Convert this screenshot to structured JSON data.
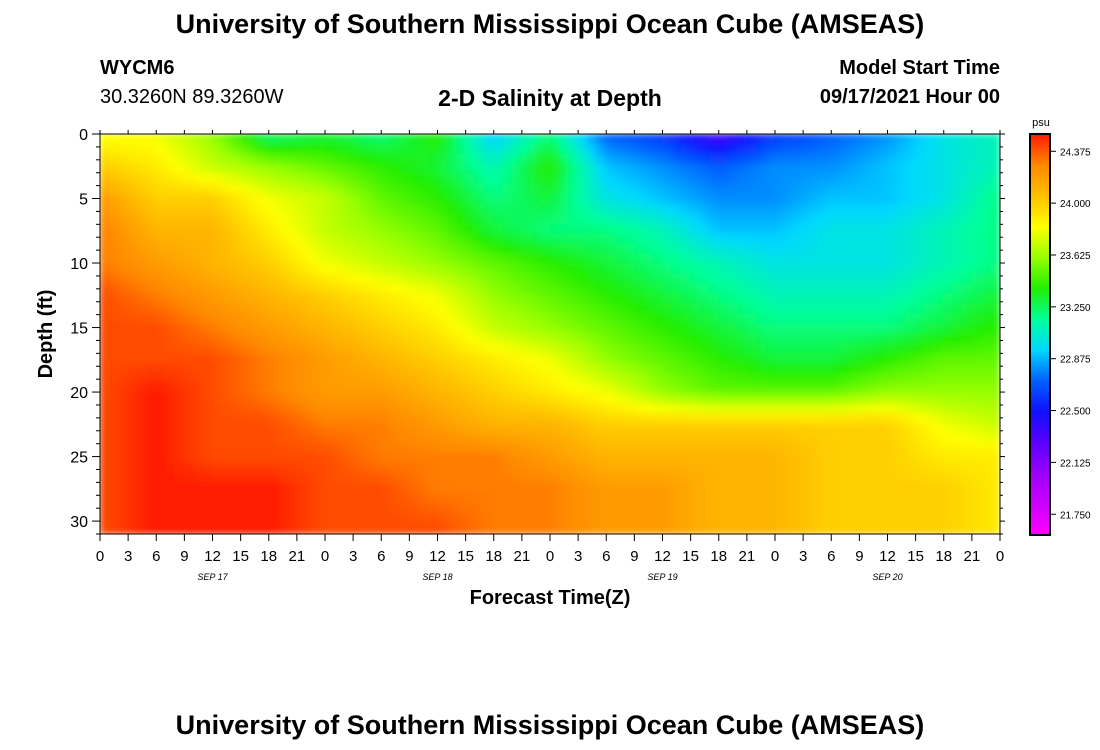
{
  "header": {
    "title_top": "University of Southern Mississippi Ocean Cube (AMSEAS)",
    "station_id": "WYCM6",
    "station_coords": "30.3260N  89.3260W",
    "chart_subtitle": "2-D Salinity at Depth",
    "model_start_label": "Model Start Time",
    "model_start_value": "09/17/2021 Hour 00",
    "title_bottom": "University of Southern Mississippi Ocean Cube (AMSEAS)"
  },
  "colors": {
    "colormap": [
      "#ff00ff",
      "#cc00ff",
      "#9a00f8",
      "#5a00ff",
      "#1010ff",
      "#0060ff",
      "#00d8ff",
      "#00ff99",
      "#22ee00",
      "#99ff00",
      "#ffff00",
      "#ffc000",
      "#ff8800",
      "#ff1a00"
    ],
    "background": "#ffffff"
  },
  "chart_data": {
    "type": "heatmap",
    "title": "2-D Salinity at Depth",
    "xlabel": "Forecast Time(Z)",
    "ylabel": "Depth (ft)",
    "x_tick_labels": [
      "0",
      "3",
      "6",
      "9",
      "12",
      "15",
      "18",
      "21",
      "0",
      "3",
      "6",
      "9",
      "12",
      "15",
      "18",
      "21",
      "0",
      "3",
      "6",
      "9",
      "12",
      "15",
      "18",
      "21",
      "0",
      "3",
      "6",
      "9",
      "12",
      "15",
      "18",
      "21",
      "0"
    ],
    "date_labels": [
      "SEP 17",
      "SEP 18",
      "SEP 19",
      "SEP 20"
    ],
    "y_ticks": [
      0,
      5,
      10,
      15,
      20,
      25,
      30
    ],
    "ylim": [
      0,
      31
    ],
    "xlim_hours": [
      0,
      96
    ],
    "colorbar": {
      "unit": "psu",
      "range": [
        21.6,
        24.5
      ],
      "tick_labels": [
        "24.375",
        "24.000",
        "23.625",
        "23.250",
        "22.875",
        "22.500",
        "22.125",
        "21.750"
      ],
      "tick_values": [
        24.375,
        24.0,
        23.625,
        23.25,
        22.875,
        22.5,
        22.125,
        21.75
      ]
    },
    "grid": false,
    "depth_rows_ft": [
      0,
      2.5,
      5,
      7.5,
      10,
      12.5,
      15,
      17.5,
      20,
      22.5,
      25,
      27.5,
      30.5
    ],
    "time_cols_hours": [
      0,
      6,
      12,
      18,
      24,
      30,
      36,
      42,
      48,
      54,
      60,
      66,
      72,
      78,
      84,
      90,
      96
    ],
    "salinity_psu": [
      [
        23.8,
        23.8,
        23.6,
        23.2,
        23.3,
        23.2,
        23.4,
        22.9,
        23.2,
        22.7,
        22.6,
        22.3,
        22.6,
        22.7,
        22.8,
        23.0,
        23.1
      ],
      [
        24.0,
        23.9,
        23.7,
        23.6,
        23.5,
        23.4,
        23.3,
        23.1,
        23.4,
        22.9,
        22.8,
        22.7,
        22.8,
        22.8,
        22.9,
        23.0,
        23.1
      ],
      [
        24.2,
        24.0,
        24.0,
        23.8,
        23.7,
        23.5,
        23.4,
        23.2,
        23.3,
        23.0,
        22.9,
        22.8,
        22.8,
        22.9,
        22.9,
        23.0,
        23.2
      ],
      [
        24.3,
        24.1,
        24.1,
        23.9,
        23.7,
        23.6,
        23.5,
        23.3,
        23.2,
        23.2,
        23.1,
        22.9,
        22.9,
        23.0,
        23.0,
        23.1,
        23.2
      ],
      [
        24.3,
        24.2,
        24.1,
        24.0,
        23.8,
        23.7,
        23.6,
        23.5,
        23.4,
        23.3,
        23.2,
        23.1,
        23.0,
        23.0,
        23.0,
        23.1,
        23.2
      ],
      [
        24.4,
        24.3,
        24.2,
        24.1,
        24.0,
        23.9,
        23.8,
        23.6,
        23.5,
        23.4,
        23.3,
        23.2,
        23.1,
        23.1,
        23.1,
        23.2,
        23.3
      ],
      [
        24.4,
        24.4,
        24.3,
        24.2,
        24.1,
        24.0,
        23.9,
        23.7,
        23.6,
        23.5,
        23.4,
        23.3,
        23.2,
        23.2,
        23.2,
        23.3,
        23.4
      ],
      [
        24.4,
        24.4,
        24.4,
        24.3,
        24.2,
        24.1,
        24.0,
        23.9,
        23.8,
        23.6,
        23.5,
        23.4,
        23.3,
        23.3,
        23.4,
        23.5,
        23.5
      ],
      [
        24.4,
        24.5,
        24.4,
        24.3,
        24.2,
        24.2,
        24.1,
        24.0,
        23.9,
        23.8,
        23.6,
        23.5,
        23.5,
        23.5,
        23.6,
        23.6,
        23.6
      ],
      [
        24.4,
        24.5,
        24.4,
        24.4,
        24.3,
        24.3,
        24.2,
        24.1,
        24.1,
        24.0,
        24.0,
        24.0,
        24.0,
        24.0,
        24.0,
        23.8,
        23.7
      ],
      [
        24.4,
        24.5,
        24.4,
        24.4,
        24.4,
        24.3,
        24.3,
        24.3,
        24.2,
        24.1,
        24.1,
        24.1,
        24.1,
        24.0,
        24.0,
        23.9,
        23.9
      ],
      [
        24.4,
        24.5,
        24.5,
        24.5,
        24.4,
        24.4,
        24.3,
        24.3,
        24.3,
        24.2,
        24.2,
        24.1,
        24.1,
        24.0,
        24.0,
        24.0,
        23.9
      ],
      [
        24.4,
        24.5,
        24.5,
        24.5,
        24.4,
        24.4,
        24.4,
        24.3,
        24.3,
        24.2,
        24.2,
        24.1,
        24.1,
        24.0,
        24.0,
        24.0,
        23.9
      ]
    ]
  }
}
